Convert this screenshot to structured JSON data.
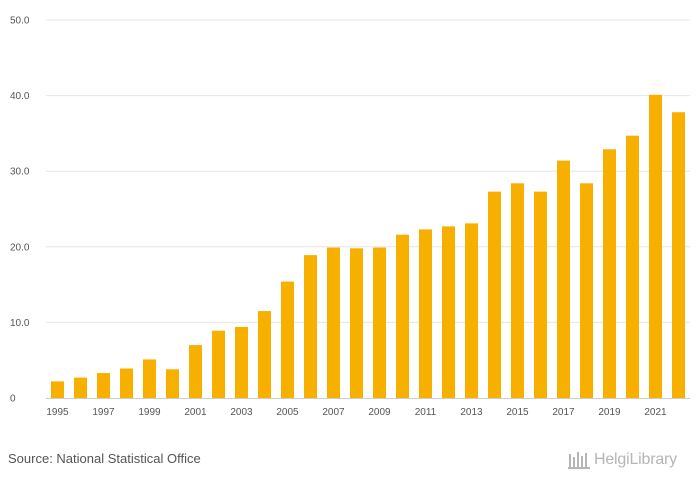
{
  "chart_data": {
    "type": "bar",
    "categories": [
      "1995",
      "1996",
      "1997",
      "1998",
      "1999",
      "2000",
      "2001",
      "2002",
      "2003",
      "2004",
      "2005",
      "2006",
      "2007",
      "2008",
      "2009",
      "2010",
      "2011",
      "2012",
      "2013",
      "2014",
      "2015",
      "2016",
      "2017",
      "2018",
      "2019",
      "2020",
      "2021",
      "2022"
    ],
    "values": [
      2.2,
      2.7,
      3.3,
      3.9,
      5.1,
      3.8,
      7.0,
      8.9,
      9.4,
      11.5,
      15.4,
      18.9,
      19.9,
      19.8,
      19.9,
      21.6,
      22.3,
      22.7,
      23.1,
      27.3,
      28.4,
      27.3,
      31.4,
      28.4,
      32.9,
      34.7,
      40.1,
      37.8
    ],
    "x_tick_labels": [
      "1995",
      "1997",
      "1999",
      "2001",
      "2003",
      "2005",
      "2007",
      "2009",
      "2011",
      "2013",
      "2015",
      "2017",
      "2019",
      "2021"
    ],
    "y_tick_labels": [
      "0",
      "10.0",
      "20.0",
      "30.0",
      "40.0",
      "50.0"
    ],
    "ylim": [
      0,
      50
    ],
    "grid": true,
    "bar_color": "#f7b000",
    "title": "",
    "xlabel": "",
    "ylabel": ""
  },
  "footer": {
    "source": "Source: National Statistical Office",
    "logo_text": "HelgiLibrary"
  },
  "colors": {
    "grid": "#e6e6e6",
    "axis": "#cccccc",
    "text": "#555555",
    "logo": "#b5b5b5"
  }
}
